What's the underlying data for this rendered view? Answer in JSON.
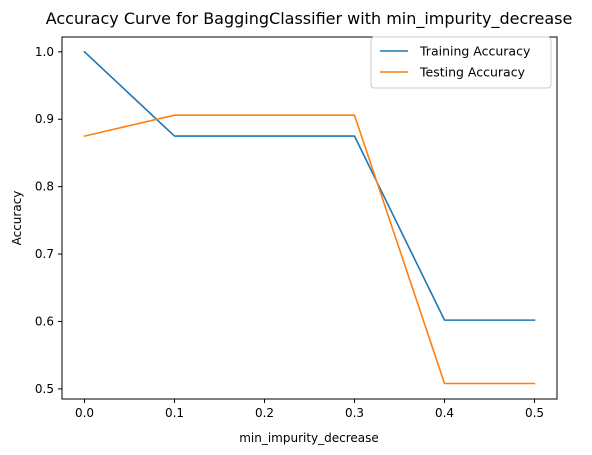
{
  "chart_data": {
    "type": "line",
    "title": "Accuracy Curve for BaggingClassifier with min_impurity_decrease",
    "xlabel": "min_impurity_decrease",
    "ylabel": "Accuracy",
    "x": [
      0.0,
      0.1,
      0.2,
      0.3,
      0.4,
      0.5
    ],
    "xlim": [
      -0.025,
      0.525
    ],
    "ylim": [
      0.485,
      1.022
    ],
    "xticks": [
      0.0,
      0.1,
      0.2,
      0.3,
      0.4,
      0.5
    ],
    "xtick_labels": [
      "0.0",
      "0.1",
      "0.2",
      "0.3",
      "0.4",
      "0.5"
    ],
    "yticks": [
      0.5,
      0.6,
      0.7,
      0.8,
      0.9,
      1.0
    ],
    "ytick_labels": [
      "0.5",
      "0.6",
      "0.7",
      "0.8",
      "0.9",
      "1.0"
    ],
    "grid": false,
    "legend_position": "upper right",
    "series": [
      {
        "name": "Training Accuracy",
        "color": "#1f77b4",
        "values": [
          1.0,
          0.875,
          0.875,
          0.875,
          0.602,
          0.602
        ]
      },
      {
        "name": "Testing Accuracy",
        "color": "#ff7f0e",
        "values": [
          0.875,
          0.906,
          0.906,
          0.906,
          0.508,
          0.508
        ]
      }
    ]
  }
}
